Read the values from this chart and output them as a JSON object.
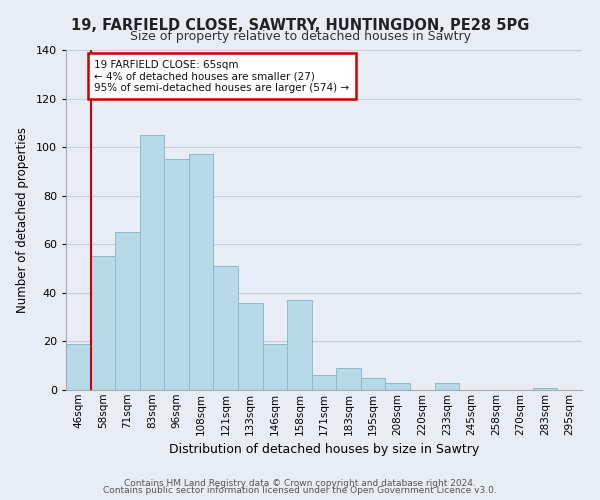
{
  "title1": "19, FARFIELD CLOSE, SAWTRY, HUNTINGDON, PE28 5PG",
  "title2": "Size of property relative to detached houses in Sawtry",
  "xlabel": "Distribution of detached houses by size in Sawtry",
  "ylabel": "Number of detached properties",
  "bar_labels": [
    "46sqm",
    "58sqm",
    "71sqm",
    "83sqm",
    "96sqm",
    "108sqm",
    "121sqm",
    "133sqm",
    "146sqm",
    "158sqm",
    "171sqm",
    "183sqm",
    "195sqm",
    "208sqm",
    "220sqm",
    "233sqm",
    "245sqm",
    "258sqm",
    "270sqm",
    "283sqm",
    "295sqm"
  ],
  "bar_values": [
    19,
    55,
    65,
    105,
    95,
    97,
    51,
    36,
    19,
    37,
    6,
    9,
    5,
    3,
    0,
    3,
    0,
    0,
    0,
    1,
    0
  ],
  "bar_color": "#b8d9e8",
  "bar_edge_color": "#8abcce",
  "ylim": [
    0,
    140
  ],
  "yticks": [
    0,
    20,
    40,
    60,
    80,
    100,
    120,
    140
  ],
  "vline_x": 1.0,
  "vline_color": "#cc0000",
  "annotation_title": "19 FARFIELD CLOSE: 65sqm",
  "annotation_line1": "← 4% of detached houses are smaller (27)",
  "annotation_line2": "95% of semi-detached houses are larger (574) →",
  "annotation_box_color": "#ffffff",
  "annotation_box_edge": "#cc0000",
  "footer1": "Contains HM Land Registry data © Crown copyright and database right 2024.",
  "footer2": "Contains public sector information licensed under the Open Government Licence v3.0.",
  "background_color": "#e8ecf5",
  "plot_background": "#e8ecf5",
  "grid_color": "#c8cfe0"
}
